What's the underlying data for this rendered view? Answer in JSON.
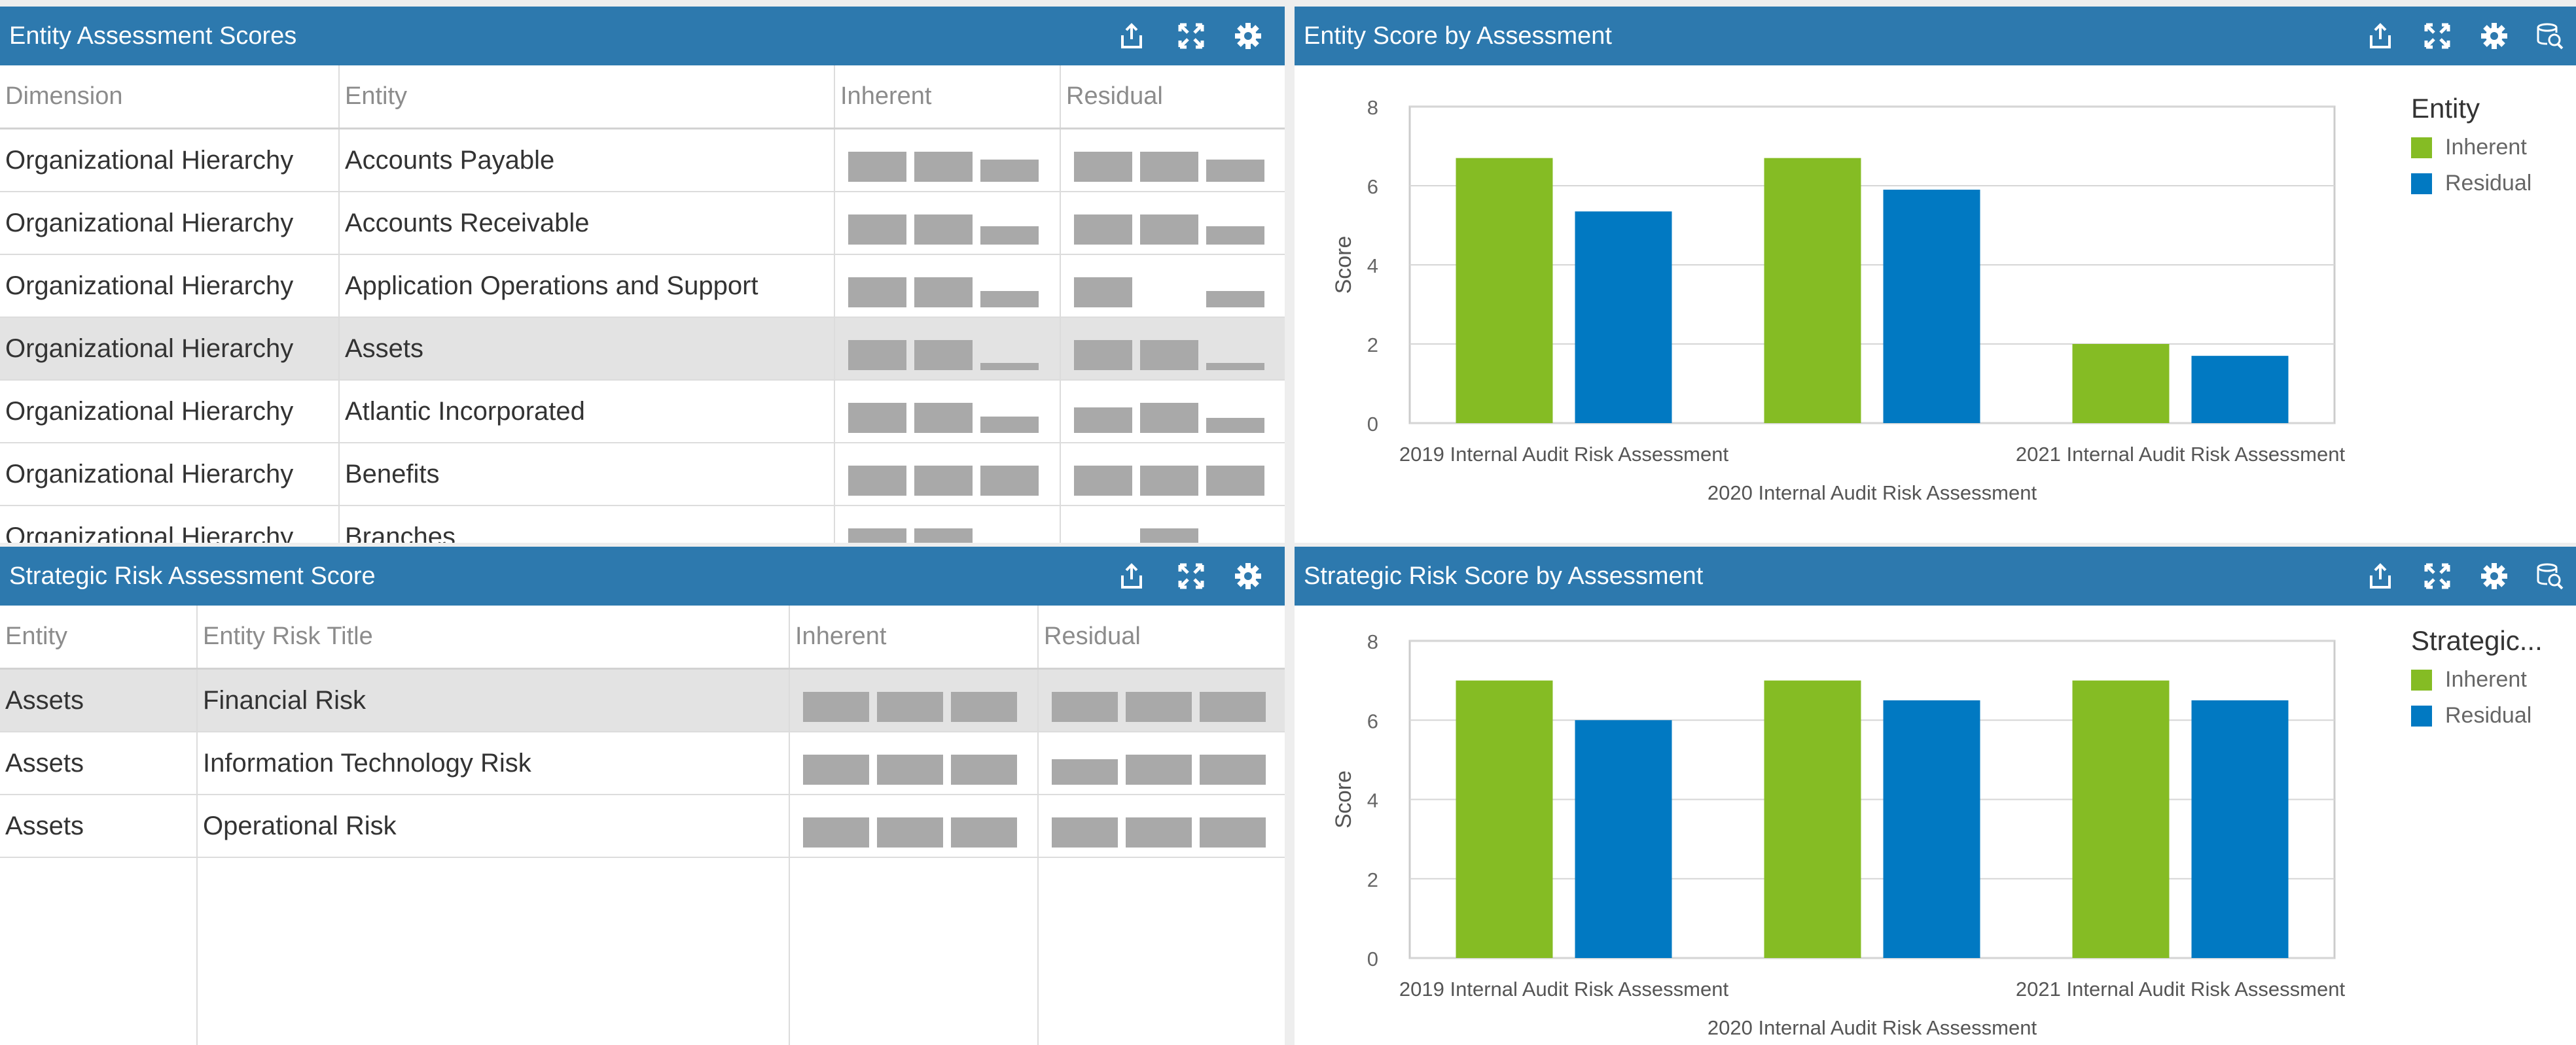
{
  "colors": {
    "header": "#2d79ae",
    "inherent": "#85bc24",
    "residual": "#0179c2",
    "bar_placeholder": "#a9a9a9"
  },
  "header_icons": [
    "export-icon",
    "expand-icon",
    "gear-icon",
    "data-explore-icon"
  ],
  "entity_table": {
    "title": "Entity Assessment Scores",
    "columns": [
      "Dimension",
      "Entity",
      "Inherent",
      "Residual"
    ],
    "rows": [
      {
        "dimension": "Organizational Hierarchy",
        "entity": "Accounts Payable",
        "inherent": [
          1,
          1,
          0.75
        ],
        "residual": [
          1,
          1,
          0.75
        ]
      },
      {
        "dimension": "Organizational Hierarchy",
        "entity": "Accounts Receivable",
        "inherent": [
          1,
          1,
          0.6
        ],
        "residual": [
          1,
          1,
          0.6
        ]
      },
      {
        "dimension": "Organizational Hierarchy",
        "entity": "Application Operations and Support",
        "inherent": [
          1,
          1,
          0.55
        ],
        "residual": [
          1,
          0,
          0.55
        ]
      },
      {
        "dimension": "Organizational Hierarchy",
        "entity": "Assets",
        "inherent": [
          1,
          1,
          0.25
        ],
        "residual": [
          1,
          1,
          0.25
        ]
      },
      {
        "dimension": "Organizational Hierarchy",
        "entity": "Atlantic Incorporated",
        "inherent": [
          1,
          1,
          0.55
        ],
        "residual": [
          0.85,
          1,
          0.5
        ]
      },
      {
        "dimension": "Organizational Hierarchy",
        "entity": "Benefits",
        "inherent": [
          1,
          1,
          1
        ],
        "residual": [
          1,
          1,
          1
        ]
      },
      {
        "dimension": "Organizational Hierarchy",
        "entity": "Branches",
        "inherent": [
          1,
          1,
          0.1
        ],
        "residual": [
          0.5,
          1,
          0
        ]
      }
    ],
    "selected_row": 3
  },
  "strategic_table": {
    "title": "Strategic Risk Assessment Score",
    "columns": [
      "Entity",
      "Entity Risk Title",
      "Inherent",
      "Residual"
    ],
    "rows": [
      {
        "entity": "Assets",
        "title": "Financial Risk",
        "inherent": [
          1,
          1,
          1
        ],
        "residual": [
          1,
          1,
          1
        ]
      },
      {
        "entity": "Assets",
        "title": "Information Technology Risk",
        "inherent": [
          1,
          1,
          1
        ],
        "residual": [
          0.85,
          1,
          1
        ]
      },
      {
        "entity": "Assets",
        "title": "Operational Risk",
        "inherent": [
          1,
          1,
          1
        ],
        "residual": [
          1,
          1,
          1
        ]
      }
    ],
    "selected_row": 0
  },
  "chart_data": [
    {
      "type": "bar",
      "title": "Entity Score by Assessment",
      "categories": [
        "2019 Internal Audit Risk Assessment",
        "2020 Internal Audit Risk Assessment",
        "2021 Internal Audit Risk Assessment"
      ],
      "series": [
        {
          "name": "Inherent",
          "values": [
            6.7,
            6.7,
            2.0
          ]
        },
        {
          "name": "Residual",
          "values": [
            5.35,
            5.9,
            1.7
          ]
        }
      ],
      "ylabel": "Score",
      "ylim": [
        0,
        8
      ],
      "yticks": [
        0,
        2,
        4,
        6,
        8
      ],
      "legend_title": "Entity",
      "legend_position": "right",
      "grid": true
    },
    {
      "type": "bar",
      "title": "Strategic Risk Score by Assessment",
      "categories": [
        "2019 Internal Audit Risk Assessment",
        "2020 Internal Audit Risk Assessment",
        "2021 Internal Audit Risk Assessment"
      ],
      "series": [
        {
          "name": "Inherent",
          "values": [
            7,
            7,
            7
          ]
        },
        {
          "name": "Residual",
          "values": [
            6,
            6.5,
            6.5
          ]
        }
      ],
      "ylabel": "Score",
      "ylim": [
        0,
        8
      ],
      "yticks": [
        0,
        2,
        4,
        6,
        8
      ],
      "legend_title": "Strategic...",
      "legend_position": "right",
      "grid": true
    }
  ]
}
